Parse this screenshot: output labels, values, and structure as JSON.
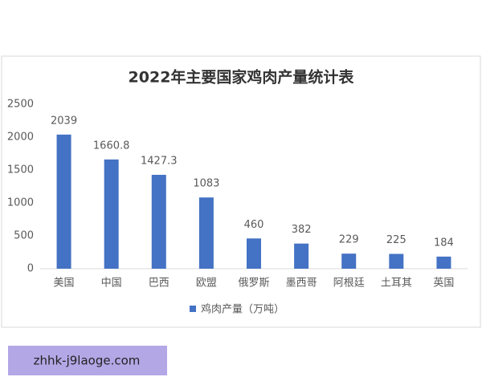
{
  "chart_data": {
    "type": "bar",
    "title": "2022年主要国家鸡肉产量统计表",
    "categories": [
      "美国",
      "中国",
      "巴西",
      "欧盟",
      "俄罗斯",
      "墨西哥",
      "阿根廷",
      "土耳其",
      "英国"
    ],
    "series": [
      {
        "name": "鸡肉产量（万吨）",
        "color": "#4472c4",
        "values": [
          2039,
          1660.8,
          1427.3,
          1083,
          460,
          382,
          229,
          225,
          184
        ]
      }
    ],
    "ylim": [
      0,
      2500
    ],
    "yticks": [
      0,
      500,
      1000,
      1500,
      2000,
      2500
    ],
    "grid": false,
    "legend": "bottom"
  },
  "watermark": "zhhk-j9laoge.com"
}
